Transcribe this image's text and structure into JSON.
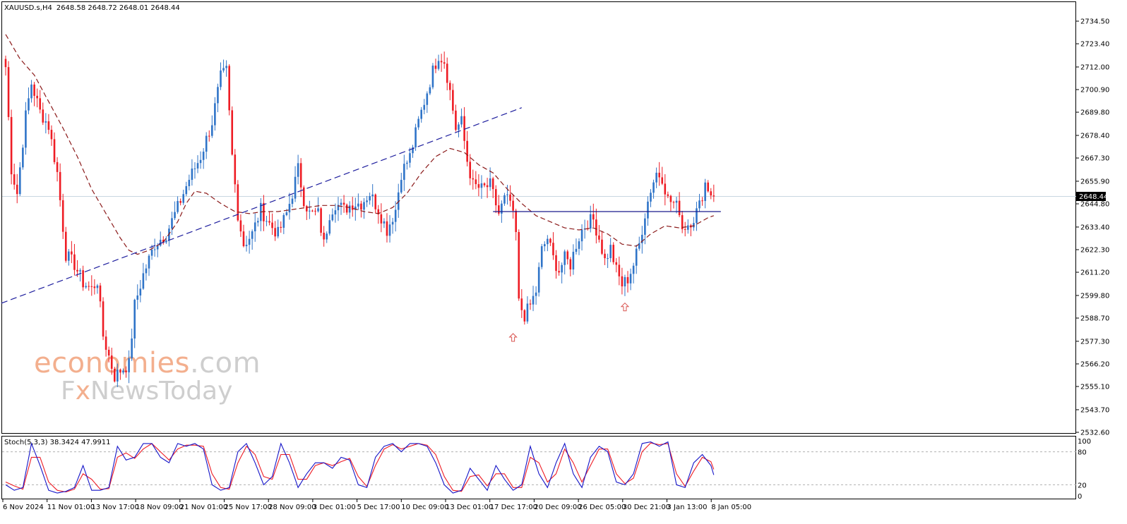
{
  "header": {
    "symbol_label": "XAUUSD.s,H4",
    "ohlc_text": "2648.58 2648.72 2648.01 2648.44"
  },
  "current_price_label": "2648.44",
  "watermark": {
    "line1_part1": "eco",
    "line1_part2": "nomies",
    "line1_part3": ".com",
    "line2_part1": "F",
    "line2_part2": "x",
    "line2_part3": "NewsToday"
  },
  "stoch": {
    "label": "Stoch(5,3,3) 38.3424 47.9911",
    "levels": [
      "100",
      "80",
      "20",
      "0"
    ]
  },
  "colors": {
    "bull": "#2f74c8",
    "bear": "#ee1c24",
    "ma": "#8b1a1a",
    "trendline": "#1e1e9e",
    "resistance": "#1a1a8c",
    "arrow": "#d9534f",
    "stoch_main": "#1515c8",
    "stoch_signal": "#ee1c24",
    "watermark_orange": "#f2a27b",
    "watermark_gray": "#c6c6c6"
  },
  "chart_data": {
    "type": "candlestick",
    "symbol": "XAUUSD.s",
    "timeframe": "H4",
    "y_ticks": [
      "2734.50",
      "2723.40",
      "2712.00",
      "2700.90",
      "2689.80",
      "2678.40",
      "2667.30",
      "2655.90",
      "2644.80",
      "2633.40",
      "2622.30",
      "2611.20",
      "2599.80",
      "2588.70",
      "2577.30",
      "2566.20",
      "2555.10",
      "2543.70",
      "2532.60"
    ],
    "ylim": [
      2530.0,
      2740.0
    ],
    "x_labels": [
      "6 Nov 2024",
      "11 Nov 01:00",
      "13 Nov 17:00",
      "18 Nov 09:00",
      "21 Nov 01:00",
      "25 Nov 17:00",
      "28 Nov 09:00",
      "3 Dec 01:00",
      "5 Dec 17:00",
      "10 Dec 09:00",
      "13 Dec 01:00",
      "17 Dec 17:00",
      "20 Dec 09:00",
      "26 Dec 05:00",
      "30 Dec 21:00",
      "3 Jan 13:00",
      "8 Jan 05:00"
    ],
    "anchors": [
      [
        0,
        2712
      ],
      [
        2,
        2662
      ],
      [
        4,
        2650
      ],
      [
        7,
        2688
      ],
      [
        9,
        2704
      ],
      [
        12,
        2690
      ],
      [
        15,
        2683
      ],
      [
        18,
        2660
      ],
      [
        21,
        2620
      ],
      [
        24,
        2615
      ],
      [
        27,
        2606
      ],
      [
        30,
        2603
      ],
      [
        32,
        2607
      ],
      [
        34,
        2580
      ],
      [
        36,
        2570
      ],
      [
        38,
        2560
      ],
      [
        40,
        2563
      ],
      [
        43,
        2566
      ],
      [
        45,
        2595
      ],
      [
        48,
        2610
      ],
      [
        52,
        2625
      ],
      [
        56,
        2630
      ],
      [
        60,
        2643
      ],
      [
        64,
        2657
      ],
      [
        68,
        2668
      ],
      [
        72,
        2685
      ],
      [
        75,
        2707
      ],
      [
        77,
        2710
      ],
      [
        79,
        2668
      ],
      [
        81,
        2640
      ],
      [
        83,
        2625
      ],
      [
        86,
        2630
      ],
      [
        89,
        2642
      ],
      [
        92,
        2635
      ],
      [
        95,
        2630
      ],
      [
        98,
        2640
      ],
      [
        100,
        2650
      ],
      [
        102,
        2662
      ],
      [
        104,
        2647
      ],
      [
        106,
        2640
      ],
      [
        109,
        2640
      ],
      [
        111,
        2625
      ],
      [
        113,
        2640
      ],
      [
        115,
        2645
      ],
      [
        118,
        2642
      ],
      [
        121,
        2645
      ],
      [
        124,
        2645
      ],
      [
        127,
        2650
      ],
      [
        130,
        2642
      ],
      [
        133,
        2632
      ],
      [
        136,
        2642
      ],
      [
        138,
        2660
      ],
      [
        141,
        2668
      ],
      [
        144,
        2685
      ],
      [
        147,
        2700
      ],
      [
        149,
        2710
      ],
      [
        151,
        2718
      ],
      [
        153,
        2715
      ],
      [
        155,
        2700
      ],
      [
        157,
        2682
      ],
      [
        159,
        2685
      ],
      [
        161,
        2666
      ],
      [
        163,
        2654
      ],
      [
        166,
        2652
      ],
      [
        169,
        2654
      ],
      [
        172,
        2640
      ],
      [
        174,
        2647
      ],
      [
        176,
        2646
      ],
      [
        178,
        2630
      ],
      [
        179,
        2596
      ],
      [
        181,
        2590
      ],
      [
        183,
        2595
      ],
      [
        185,
        2602
      ],
      [
        187,
        2622
      ],
      [
        189,
        2628
      ],
      [
        191,
        2618
      ],
      [
        193,
        2612
      ],
      [
        195,
        2618
      ],
      [
        197,
        2615
      ],
      [
        199,
        2625
      ],
      [
        201,
        2632
      ],
      [
        203,
        2636
      ],
      [
        205,
        2637
      ],
      [
        207,
        2628
      ],
      [
        209,
        2617
      ],
      [
        211,
        2623
      ],
      [
        213,
        2612
      ],
      [
        215,
        2605
      ],
      [
        217,
        2608
      ],
      [
        219,
        2615
      ],
      [
        221,
        2625
      ],
      [
        223,
        2640
      ],
      [
        225,
        2652
      ],
      [
        227,
        2660
      ],
      [
        229,
        2658
      ],
      [
        231,
        2647
      ],
      [
        233,
        2645
      ],
      [
        235,
        2642
      ],
      [
        236,
        2633
      ],
      [
        238,
        2635
      ],
      [
        240,
        2638
      ],
      [
        242,
        2644
      ],
      [
        244,
        2655
      ],
      [
        246,
        2650
      ],
      [
        247,
        2648.44
      ]
    ],
    "ma_anchors": [
      [
        0,
        2728
      ],
      [
        5,
        2716
      ],
      [
        10,
        2708
      ],
      [
        15,
        2695
      ],
      [
        20,
        2682
      ],
      [
        25,
        2668
      ],
      [
        30,
        2652
      ],
      [
        35,
        2640
      ],
      [
        40,
        2628
      ],
      [
        43,
        2622
      ],
      [
        46,
        2620
      ],
      [
        50,
        2622
      ],
      [
        55,
        2626
      ],
      [
        60,
        2636
      ],
      [
        63,
        2645
      ],
      [
        66,
        2651
      ],
      [
        70,
        2650
      ],
      [
        75,
        2645
      ],
      [
        80,
        2641
      ],
      [
        85,
        2640
      ],
      [
        90,
        2641
      ],
      [
        95,
        2641
      ],
      [
        100,
        2642
      ],
      [
        105,
        2643
      ],
      [
        110,
        2644
      ],
      [
        115,
        2644
      ],
      [
        120,
        2643
      ],
      [
        125,
        2641
      ],
      [
        130,
        2640
      ],
      [
        135,
        2643
      ],
      [
        140,
        2650
      ],
      [
        145,
        2660
      ],
      [
        150,
        2668
      ],
      [
        155,
        2672
      ],
      [
        160,
        2670
      ],
      [
        165,
        2664
      ],
      [
        170,
        2660
      ],
      [
        175,
        2652
      ],
      [
        180,
        2645
      ],
      [
        185,
        2639
      ],
      [
        190,
        2636
      ],
      [
        195,
        2633
      ],
      [
        200,
        2632
      ],
      [
        205,
        2633
      ],
      [
        210,
        2630
      ],
      [
        215,
        2625
      ],
      [
        220,
        2624
      ],
      [
        225,
        2630
      ],
      [
        230,
        2634
      ],
      [
        235,
        2633
      ],
      [
        240,
        2634
      ],
      [
        245,
        2638
      ],
      [
        247,
        2639
      ]
    ],
    "trendline": {
      "from": [
        0,
        2596
      ],
      "to": [
        180,
        2692
      ]
    },
    "resistance_line": {
      "from": [
        170,
        2641
      ],
      "to": [
        247,
        2641
      ]
    },
    "arrows": [
      {
        "bar": 177,
        "price": 2579
      },
      {
        "bar": 216,
        "price": 2594
      }
    ],
    "stochastic": {
      "k_anchors": [
        [
          0,
          20
        ],
        [
          3,
          10
        ],
        [
          6,
          15
        ],
        [
          9,
          95
        ],
        [
          12,
          55
        ],
        [
          15,
          10
        ],
        [
          18,
          5
        ],
        [
          21,
          8
        ],
        [
          24,
          15
        ],
        [
          27,
          55
        ],
        [
          30,
          10
        ],
        [
          33,
          10
        ],
        [
          36,
          15
        ],
        [
          39,
          90
        ],
        [
          42,
          65
        ],
        [
          45,
          70
        ],
        [
          48,
          95
        ],
        [
          51,
          95
        ],
        [
          54,
          70
        ],
        [
          57,
          60
        ],
        [
          60,
          95
        ],
        [
          63,
          90
        ],
        [
          66,
          95
        ],
        [
          69,
          85
        ],
        [
          72,
          20
        ],
        [
          75,
          10
        ],
        [
          78,
          15
        ],
        [
          81,
          80
        ],
        [
          84,
          95
        ],
        [
          87,
          60
        ],
        [
          90,
          20
        ],
        [
          93,
          35
        ],
        [
          96,
          95
        ],
        [
          99,
          60
        ],
        [
          102,
          15
        ],
        [
          105,
          40
        ],
        [
          108,
          60
        ],
        [
          111,
          60
        ],
        [
          114,
          50
        ],
        [
          117,
          70
        ],
        [
          120,
          65
        ],
        [
          123,
          20
        ],
        [
          126,
          15
        ],
        [
          129,
          70
        ],
        [
          132,
          90
        ],
        [
          135,
          95
        ],
        [
          138,
          80
        ],
        [
          141,
          95
        ],
        [
          144,
          95
        ],
        [
          147,
          90
        ],
        [
          150,
          60
        ],
        [
          153,
          20
        ],
        [
          156,
          5
        ],
        [
          159,
          10
        ],
        [
          162,
          50
        ],
        [
          165,
          30
        ],
        [
          168,
          10
        ],
        [
          171,
          55
        ],
        [
          174,
          30
        ],
        [
          177,
          10
        ],
        [
          180,
          20
        ],
        [
          183,
          90
        ],
        [
          186,
          40
        ],
        [
          189,
          15
        ],
        [
          192,
          60
        ],
        [
          195,
          95
        ],
        [
          198,
          40
        ],
        [
          201,
          15
        ],
        [
          204,
          70
        ],
        [
          207,
          90
        ],
        [
          210,
          80
        ],
        [
          213,
          25
        ],
        [
          216,
          20
        ],
        [
          219,
          40
        ],
        [
          222,
          95
        ],
        [
          225,
          98
        ],
        [
          228,
          90
        ],
        [
          231,
          98
        ],
        [
          234,
          20
        ],
        [
          237,
          15
        ],
        [
          240,
          60
        ],
        [
          243,
          75
        ],
        [
          246,
          55
        ],
        [
          247,
          38
        ]
      ],
      "d_anchors": [
        [
          0,
          25
        ],
        [
          3,
          18
        ],
        [
          6,
          12
        ],
        [
          9,
          70
        ],
        [
          12,
          70
        ],
        [
          15,
          25
        ],
        [
          18,
          10
        ],
        [
          21,
          7
        ],
        [
          24,
          12
        ],
        [
          27,
          40
        ],
        [
          30,
          30
        ],
        [
          33,
          12
        ],
        [
          36,
          13
        ],
        [
          39,
          70
        ],
        [
          42,
          78
        ],
        [
          45,
          68
        ],
        [
          48,
          85
        ],
        [
          51,
          95
        ],
        [
          54,
          80
        ],
        [
          57,
          65
        ],
        [
          60,
          85
        ],
        [
          63,
          92
        ],
        [
          66,
          92
        ],
        [
          69,
          90
        ],
        [
          72,
          40
        ],
        [
          75,
          15
        ],
        [
          78,
          12
        ],
        [
          81,
          60
        ],
        [
          84,
          90
        ],
        [
          87,
          75
        ],
        [
          90,
          35
        ],
        [
          93,
          30
        ],
        [
          96,
          75
        ],
        [
          99,
          75
        ],
        [
          102,
          30
        ],
        [
          105,
          30
        ],
        [
          108,
          55
        ],
        [
          111,
          60
        ],
        [
          114,
          55
        ],
        [
          117,
          62
        ],
        [
          120,
          68
        ],
        [
          123,
          35
        ],
        [
          126,
          17
        ],
        [
          129,
          55
        ],
        [
          132,
          85
        ],
        [
          135,
          93
        ],
        [
          138,
          85
        ],
        [
          141,
          90
        ],
        [
          144,
          95
        ],
        [
          147,
          92
        ],
        [
          150,
          75
        ],
        [
          153,
          35
        ],
        [
          156,
          10
        ],
        [
          159,
          8
        ],
        [
          162,
          35
        ],
        [
          165,
          38
        ],
        [
          168,
          18
        ],
        [
          171,
          40
        ],
        [
          174,
          40
        ],
        [
          177,
          15
        ],
        [
          180,
          15
        ],
        [
          183,
          70
        ],
        [
          186,
          60
        ],
        [
          189,
          25
        ],
        [
          192,
          40
        ],
        [
          195,
          85
        ],
        [
          198,
          60
        ],
        [
          201,
          25
        ],
        [
          204,
          55
        ],
        [
          207,
          85
        ],
        [
          210,
          85
        ],
        [
          213,
          40
        ],
        [
          216,
          22
        ],
        [
          219,
          32
        ],
        [
          222,
          80
        ],
        [
          225,
          96
        ],
        [
          228,
          93
        ],
        [
          231,
          95
        ],
        [
          234,
          40
        ],
        [
          237,
          17
        ],
        [
          240,
          45
        ],
        [
          243,
          70
        ],
        [
          246,
          62
        ],
        [
          247,
          48
        ]
      ]
    }
  }
}
